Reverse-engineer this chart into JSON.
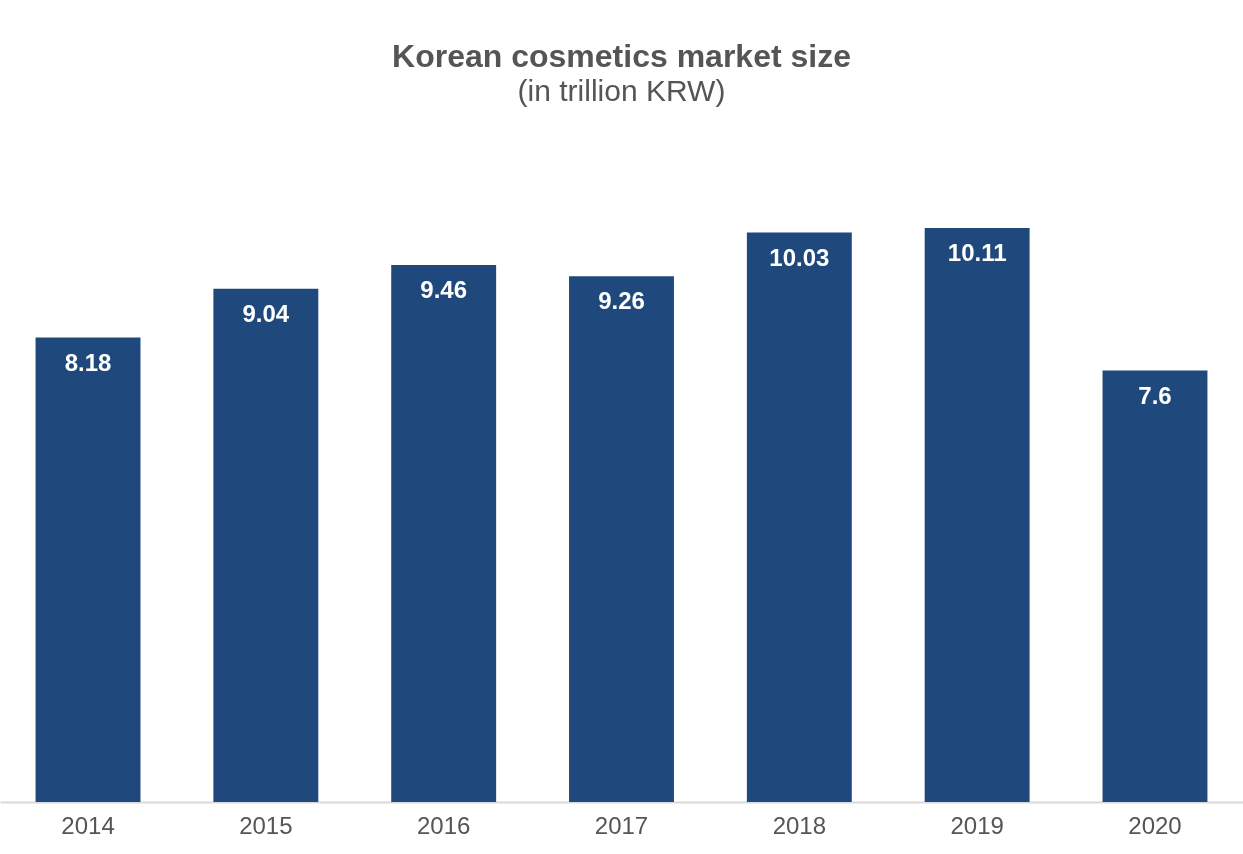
{
  "chart_data": {
    "type": "bar",
    "title": "Korean cosmetics market size",
    "subtitle": "(in trillion KRW)",
    "categories": [
      "2014",
      "2015",
      "2016",
      "2017",
      "2018",
      "2019",
      "2020"
    ],
    "values": [
      8.18,
      9.04,
      9.46,
      9.26,
      10.03,
      10.11,
      7.6
    ],
    "color": "#1f497c",
    "data_labels": true
  }
}
